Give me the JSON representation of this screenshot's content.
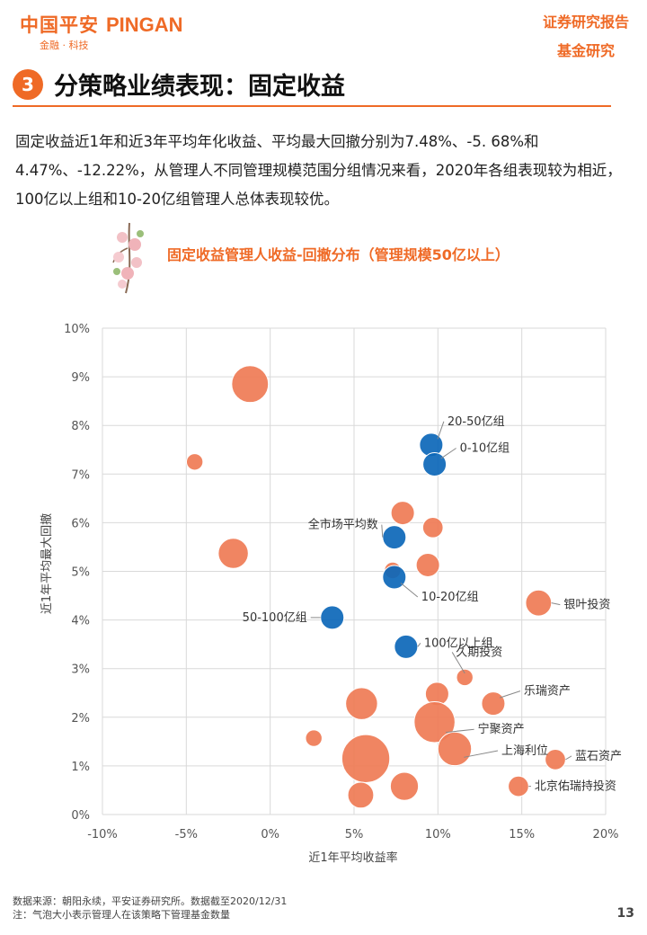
{
  "header": {
    "logo_cn": "中国平安",
    "logo_en": "PINGAN",
    "logo_sub": "金融 · 科技",
    "report_type_1": "证券研究报告",
    "report_type_2": "基金研究"
  },
  "section": {
    "number": "3",
    "title": "分策略业绩表现：固定收益"
  },
  "body_text": "固定收益近1年和近3年平均年化收益、平均最大回撤分别为7.48%、-5. 68%和4.47%、-12.22%，从管理人不同管理规模范围分组情况来看，2020年各组表现较为相近，100亿以上组和10-20亿组管理人总体表现较优。",
  "chart_data": {
    "type": "scatter",
    "title": "固定收益管理人收益-回撤分布（管理规模50亿以上）",
    "xlabel": "近1年平均收益率",
    "ylabel": "近1年平均最大回撤",
    "xlim": [
      -0.1,
      0.2
    ],
    "ylim": [
      0.0,
      0.1
    ],
    "xticks": [
      "-10%",
      "-5%",
      "0%",
      "5%",
      "10%",
      "15%",
      "20%"
    ],
    "yticks": [
      "0%",
      "1%",
      "2%",
      "3%",
      "4%",
      "5%",
      "6%",
      "7%",
      "8%",
      "9%",
      "10%"
    ],
    "grid": true,
    "series": [
      {
        "color": "#ef7b55",
        "points": [
          {
            "x": -0.012,
            "y": 0.0885,
            "size": 10,
            "label": ""
          },
          {
            "x": -0.045,
            "y": 0.0725,
            "size": 1,
            "label": ""
          },
          {
            "x": -0.022,
            "y": 0.0537,
            "size": 6,
            "label": ""
          },
          {
            "x": 0.079,
            "y": 0.062,
            "size": 3,
            "label": ""
          },
          {
            "x": 0.097,
            "y": 0.059,
            "size": 2,
            "label": ""
          },
          {
            "x": 0.094,
            "y": 0.0513,
            "size": 3,
            "label": ""
          },
          {
            "x": 0.073,
            "y": 0.0502,
            "size": 1,
            "label": ""
          },
          {
            "x": 0.16,
            "y": 0.0435,
            "size": 4,
            "label": "银叶投资"
          },
          {
            "x": 0.116,
            "y": 0.0282,
            "size": 1,
            "label": "久期投资"
          },
          {
            "x": 0.0995,
            "y": 0.0248,
            "size": 3,
            "label": ""
          },
          {
            "x": 0.133,
            "y": 0.0228,
            "size": 3,
            "label": "乐瑞资产"
          },
          {
            "x": 0.0545,
            "y": 0.0228,
            "size": 7,
            "label": ""
          },
          {
            "x": 0.098,
            "y": 0.019,
            "size": 13,
            "label": "宁聚资产"
          },
          {
            "x": 0.11,
            "y": 0.0135,
            "size": 8,
            "label": "上海利位"
          },
          {
            "x": 0.026,
            "y": 0.0157,
            "size": 1,
            "label": ""
          },
          {
            "x": 0.057,
            "y": 0.0115,
            "size": 19,
            "label": ""
          },
          {
            "x": 0.17,
            "y": 0.0113,
            "size": 2,
            "label": "蓝石资产"
          },
          {
            "x": 0.08,
            "y": 0.0058,
            "size": 5,
            "label": ""
          },
          {
            "x": 0.148,
            "y": 0.0058,
            "size": 2,
            "label": "北京佑瑞持投资"
          },
          {
            "x": 0.054,
            "y": 0.004,
            "size": 4,
            "label": ""
          }
        ]
      },
      {
        "color": "#0c67b8",
        "points": [
          {
            "x": 0.096,
            "y": 0.076,
            "size": 3,
            "label": "20-50亿组"
          },
          {
            "x": 0.098,
            "y": 0.072,
            "size": 3,
            "label": "0-10亿组"
          },
          {
            "x": 0.074,
            "y": 0.057,
            "size": 3,
            "label": "全市场平均数"
          },
          {
            "x": 0.074,
            "y": 0.0488,
            "size": 3,
            "label": "10-20亿组"
          },
          {
            "x": 0.037,
            "y": 0.0405,
            "size": 3,
            "label": "50-100亿组"
          },
          {
            "x": 0.081,
            "y": 0.0345,
            "size": 3,
            "label": "100亿以上组"
          }
        ]
      }
    ]
  },
  "footer": {
    "source": "数据来源：朝阳永续，平安证券研究所。数据截至2020/12/31",
    "note": "注：气泡大小表示管理人在该策略下管理基金数量"
  },
  "page_number": "13"
}
